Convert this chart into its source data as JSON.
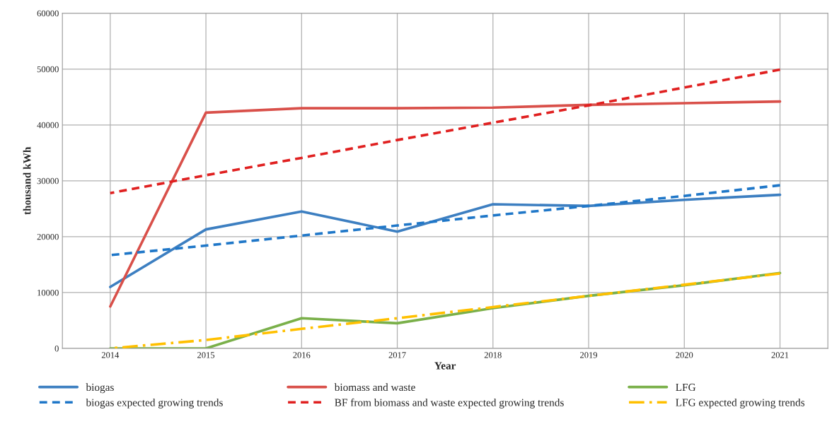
{
  "chart_data": {
    "type": "line",
    "xlabel": "Year",
    "ylabel": "thousand kWh",
    "categories": [
      "2014",
      "2015",
      "2016",
      "2017",
      "2018",
      "2019",
      "2020",
      "2021"
    ],
    "ylim": [
      0,
      60000
    ],
    "yticks": [
      0,
      10000,
      20000,
      30000,
      40000,
      50000,
      60000
    ],
    "grid": true,
    "legend": "bottom",
    "marker": "none",
    "series": [
      {
        "name": "biogas",
        "color": "#3d7fc1",
        "line_style": "solid",
        "values": [
          11000,
          21300,
          24500,
          20900,
          25800,
          25500,
          26600,
          27500
        ]
      },
      {
        "name": "biogas expected growing trends",
        "color": "#1f77c8",
        "line_style": "dashed",
        "values": [
          16700,
          18400,
          20200,
          22000,
          23800,
          25500,
          27300,
          29200
        ]
      },
      {
        "name": "biomass and waste",
        "color": "#d9504a",
        "line_style": "solid",
        "values": [
          7500,
          42200,
          43000,
          43000,
          43100,
          43600,
          43900,
          44200
        ]
      },
      {
        "name": "BF from biomass and waste expected growing trends",
        "color": "#e02020",
        "line_style": "dashed",
        "values": [
          27800,
          31000,
          34100,
          37300,
          40400,
          43500,
          46700,
          49900
        ]
      },
      {
        "name": "LFG",
        "color": "#7ab04a",
        "line_style": "solid",
        "values": [
          0,
          0,
          5400,
          4500,
          7200,
          9400,
          11300,
          13500
        ]
      },
      {
        "name": "LFG expected growing trends",
        "color": "#ffc000",
        "line_style": "dashdot",
        "values": [
          0,
          1500,
          3500,
          5400,
          7400,
          9400,
          11400,
          13400
        ]
      }
    ]
  }
}
